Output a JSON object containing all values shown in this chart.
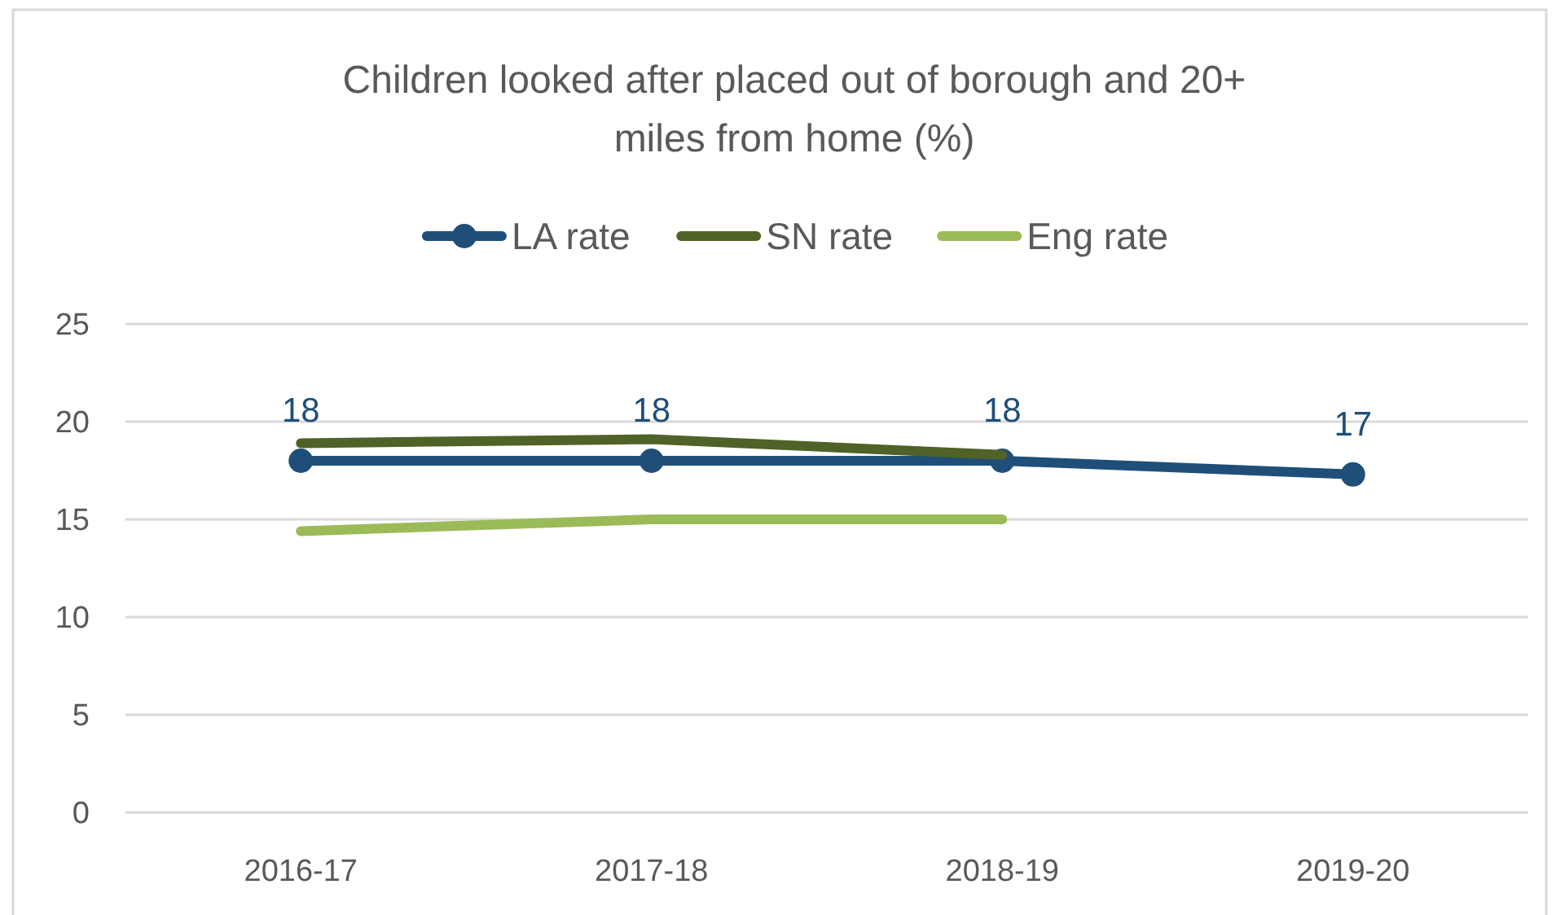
{
  "chart_data": {
    "type": "line",
    "title": "Children looked after placed out of borough and 20+ miles from home (%)",
    "categories": [
      "2016-17",
      "2017-18",
      "2018-19",
      "2019-20"
    ],
    "series": [
      {
        "name": "LA rate",
        "color": "#1f4e79",
        "values": [
          18,
          18,
          18,
          17.3
        ],
        "marker": "circle",
        "value_labels": [
          "18",
          "18",
          "18",
          "17"
        ]
      },
      {
        "name": "SN rate",
        "color": "#4f6228",
        "values": [
          18.9,
          19.1,
          18.3,
          null
        ],
        "marker": "none"
      },
      {
        "name": "Eng rate",
        "color": "#9bbb59",
        "values": [
          14.4,
          15.0,
          15.0,
          null
        ],
        "marker": "none"
      }
    ],
    "ylim": [
      0,
      25
    ],
    "yticks": [
      0,
      5,
      10,
      15,
      20,
      25
    ],
    "grid": "y",
    "legend": "top"
  }
}
